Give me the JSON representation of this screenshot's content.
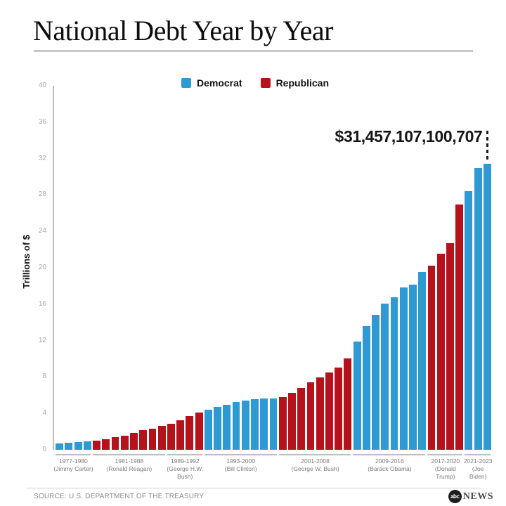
{
  "header": {
    "title": "National Debt Year by Year"
  },
  "legend": {
    "items": [
      {
        "label": "Democrat",
        "color": "#2E9AD4"
      },
      {
        "label": "Republican",
        "color": "#B5121B"
      }
    ]
  },
  "annotation": {
    "label": "$31,457,107,100,707"
  },
  "footer": {
    "source": "SOURCE: U.S. DEPARTMENT OF THE TREASURY",
    "logo_abc": "abc",
    "logo_news": "NEWS"
  },
  "chart_data": {
    "type": "bar",
    "title": "National Debt Year by Year",
    "ylabel": "Trillions of $",
    "ylim": [
      0,
      40
    ],
    "yticks": [
      0,
      4,
      8,
      12,
      16,
      20,
      24,
      28,
      32,
      36,
      40
    ],
    "grid": false,
    "legend": [
      "Democrat",
      "Republican"
    ],
    "legend_position": "top",
    "colors": {
      "Democrat": "#2E9AD4",
      "Republican": "#B5121B"
    },
    "unit": "trillions of US dollars",
    "annotation": {
      "text": "$31,457,107,100,707",
      "points_to_year": 2023
    },
    "groups": [
      {
        "label": "1977-1980",
        "president": "(Jimmy Carter)",
        "president_lines": [
          "(Jimmy Carter)"
        ],
        "party": "Democrat",
        "start_year": 1977,
        "values": [
          0.7,
          0.77,
          0.83,
          0.91
        ]
      },
      {
        "label": "1981-1988",
        "president": "(Ronald Reagan)",
        "president_lines": [
          "(Ronald Reagan)"
        ],
        "party": "Republican",
        "start_year": 1981,
        "values": [
          1.0,
          1.14,
          1.38,
          1.57,
          1.82,
          2.13,
          2.35,
          2.6
        ]
      },
      {
        "label": "1989-1992",
        "president": "(George H.W. Bush)",
        "president_lines": [
          "(George H.W.",
          "Bush)"
        ],
        "party": "Republican",
        "start_year": 1989,
        "values": [
          2.86,
          3.23,
          3.67,
          4.06
        ]
      },
      {
        "label": "1993-2000",
        "president": "(Bill Clinton)",
        "president_lines": [
          "(Bill Clinton)"
        ],
        "party": "Democrat",
        "start_year": 1993,
        "values": [
          4.41,
          4.69,
          4.97,
          5.22,
          5.41,
          5.53,
          5.66,
          5.67
        ]
      },
      {
        "label": "2001-2008",
        "president": "(George W. Bush)",
        "president_lines": [
          "(George W. Bush)"
        ],
        "party": "Republican",
        "start_year": 2001,
        "values": [
          5.81,
          6.23,
          6.78,
          7.38,
          7.93,
          8.51,
          9.01,
          10.02
        ]
      },
      {
        "label": "2009-2016",
        "president": "(Barack Obama)",
        "president_lines": [
          "(Barack Obama)"
        ],
        "party": "Democrat",
        "start_year": 2009,
        "values": [
          11.91,
          13.56,
          14.79,
          16.07,
          16.74,
          17.82,
          18.15,
          19.57
        ]
      },
      {
        "label": "2017-2020",
        "president": "(Donald Trump)",
        "president_lines": [
          "(Donald",
          "Trump)"
        ],
        "party": "Republican",
        "start_year": 2017,
        "values": [
          20.24,
          21.52,
          22.72,
          26.95
        ]
      },
      {
        "label": "2021-2023",
        "president": "(Joe Biden)",
        "president_lines": [
          "(Joe",
          "Biden)"
        ],
        "party": "Democrat",
        "start_year": 2021,
        "values": [
          28.43,
          30.93,
          31.46
        ]
      }
    ]
  }
}
